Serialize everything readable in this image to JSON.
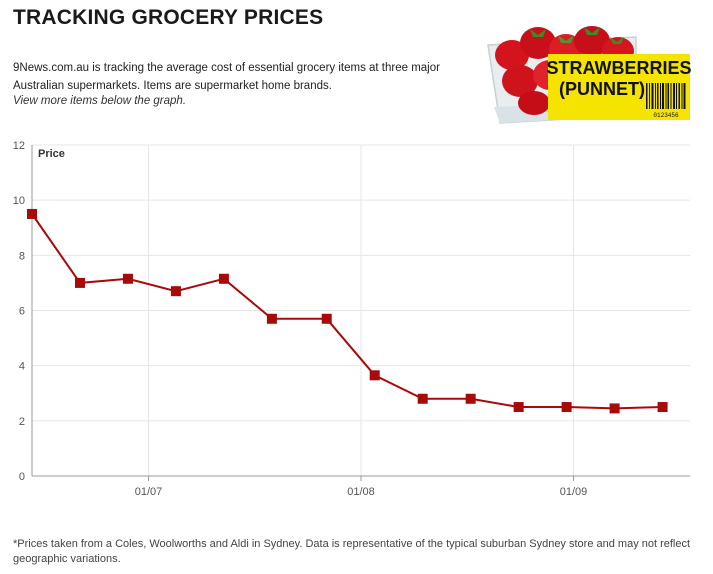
{
  "header": {
    "title": "TRACKING GROCERY PRICES",
    "description": "9News.com.au is tracking the average cost of essential grocery items at three major Australian supermarkets. Items are supermarket home brands.",
    "note": "View more items below the graph."
  },
  "product": {
    "name_line1": "STRAWBERRIES",
    "name_line2": "(PUNNET)",
    "barcode_number": "0123456",
    "icon": "strawberries-punnet-image",
    "label_color": "#f5e400"
  },
  "chart_data": {
    "type": "line",
    "ylabel": "Price",
    "ylim": [
      0,
      12
    ],
    "yticks": [
      0,
      2,
      4,
      6,
      8,
      10,
      12
    ],
    "xticks": [
      {
        "date": "2019-07-01",
        "label": "01/07"
      },
      {
        "date": "2019-08-01",
        "label": "01/08"
      },
      {
        "date": "2019-09-01",
        "label": "01/09"
      }
    ],
    "xlim": [
      "2019-06-14",
      "2019-09-18"
    ],
    "grid": true,
    "line_color": "#a80a0a",
    "series": [
      {
        "points": [
          {
            "date": "2019-06-14",
            "value": 9.5
          },
          {
            "date": "2019-06-21",
            "value": 7.0
          },
          {
            "date": "2019-06-28",
            "value": 7.15
          },
          {
            "date": "2019-07-05",
            "value": 6.7
          },
          {
            "date": "2019-07-12",
            "value": 7.15
          },
          {
            "date": "2019-07-19",
            "value": 5.7
          },
          {
            "date": "2019-07-27",
            "value": 5.7
          },
          {
            "date": "2019-08-03",
            "value": 3.65
          },
          {
            "date": "2019-08-10",
            "value": 2.8
          },
          {
            "date": "2019-08-17",
            "value": 2.8
          },
          {
            "date": "2019-08-24",
            "value": 2.5
          },
          {
            "date": "2019-08-31",
            "value": 2.5
          },
          {
            "date": "2019-09-07",
            "value": 2.45
          },
          {
            "date": "2019-09-14",
            "value": 2.5
          }
        ]
      }
    ]
  },
  "footnote": "*Prices taken from a Coles, Woolworths and Aldi in Sydney. Data is representative of the typical suburban Sydney store and may not reflect geographic variations."
}
